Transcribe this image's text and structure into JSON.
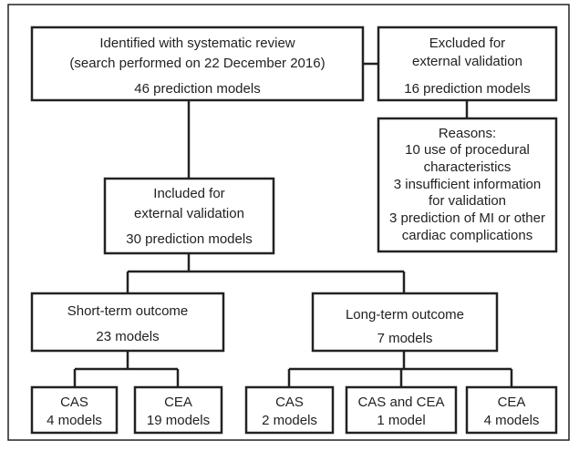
{
  "nodes": [
    {
      "lines": [
        "Identified with systematic review",
        "(search performed on 22 December 2016)",
        "46 prediction models"
      ]
    },
    {
      "lines": [
        "Excluded for",
        "external validation",
        "16 prediction models"
      ]
    },
    {
      "lines": [
        "Reasons:",
        "10 use of procedural",
        "characteristics",
        "3 insufficient information",
        "for validation",
        "3 prediction of MI or other",
        "cardiac complications"
      ]
    },
    {
      "lines": [
        "Included for",
        "external validation",
        "30 prediction models"
      ]
    },
    {
      "lines": [
        "Short-term outcome",
        "23 models"
      ]
    },
    {
      "lines": [
        "Long-term outcome",
        "7 models"
      ]
    },
    {
      "lines": [
        "CAS",
        "4 models"
      ]
    },
    {
      "lines": [
        "CEA",
        "19 models"
      ]
    },
    {
      "lines": [
        "CAS",
        "2 models"
      ]
    },
    {
      "lines": [
        "CAS and CEA",
        "1 model"
      ]
    },
    {
      "lines": [
        "CEA",
        "4 models"
      ]
    }
  ]
}
